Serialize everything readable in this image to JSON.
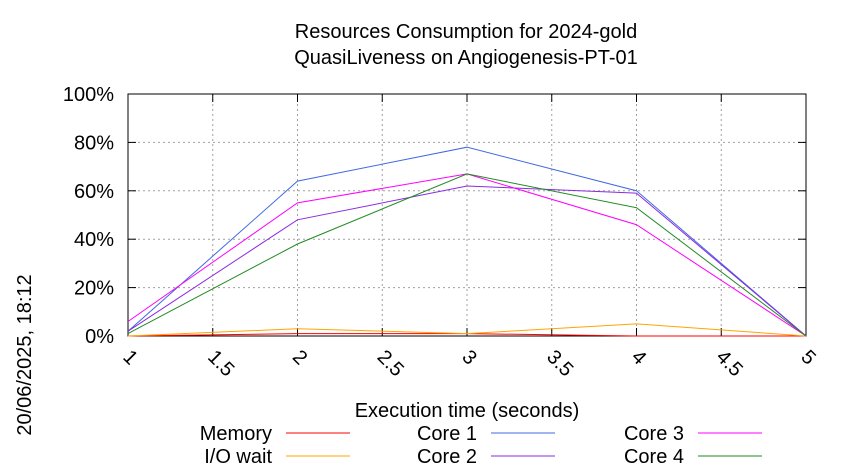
{
  "chart_data": {
    "type": "line",
    "title": "Resources Consumption for 2024-gold",
    "subtitle": "QuasiLiveness on Angiogenesis-PT-01",
    "xlabel": "Execution time (seconds)",
    "ylabel": "",
    "side_label": "20/06/2025, 18:12",
    "xlim": [
      1,
      5
    ],
    "ylim": [
      0,
      100
    ],
    "x_ticks": [
      "1",
      "1.5",
      "2",
      "2.5",
      "3",
      "3.5",
      "4",
      "4.5",
      "5"
    ],
    "y_ticks": [
      "0%",
      "20%",
      "40%",
      "60%",
      "80%",
      "100%"
    ],
    "grid": true,
    "legend_position": "bottom",
    "x": [
      1,
      2,
      3,
      4,
      5
    ],
    "series": [
      {
        "name": "Memory",
        "color": "#ff0000",
        "values": [
          0,
          1,
          1,
          0,
          0
        ]
      },
      {
        "name": "I/O wait",
        "color": "#ffa500",
        "values": [
          0,
          3,
          1,
          5,
          0
        ]
      },
      {
        "name": "Core 1",
        "color": "#4169e1",
        "values": [
          2,
          64,
          78,
          60,
          0
        ]
      },
      {
        "name": "Core 2",
        "color": "#8a2be2",
        "values": [
          2,
          48,
          62,
          59,
          0
        ]
      },
      {
        "name": "Core 3",
        "color": "#ff00ff",
        "values": [
          6,
          55,
          67,
          46,
          0
        ]
      },
      {
        "name": "Core 4",
        "color": "#228b22",
        "values": [
          1,
          38,
          67,
          53,
          0
        ]
      }
    ]
  }
}
